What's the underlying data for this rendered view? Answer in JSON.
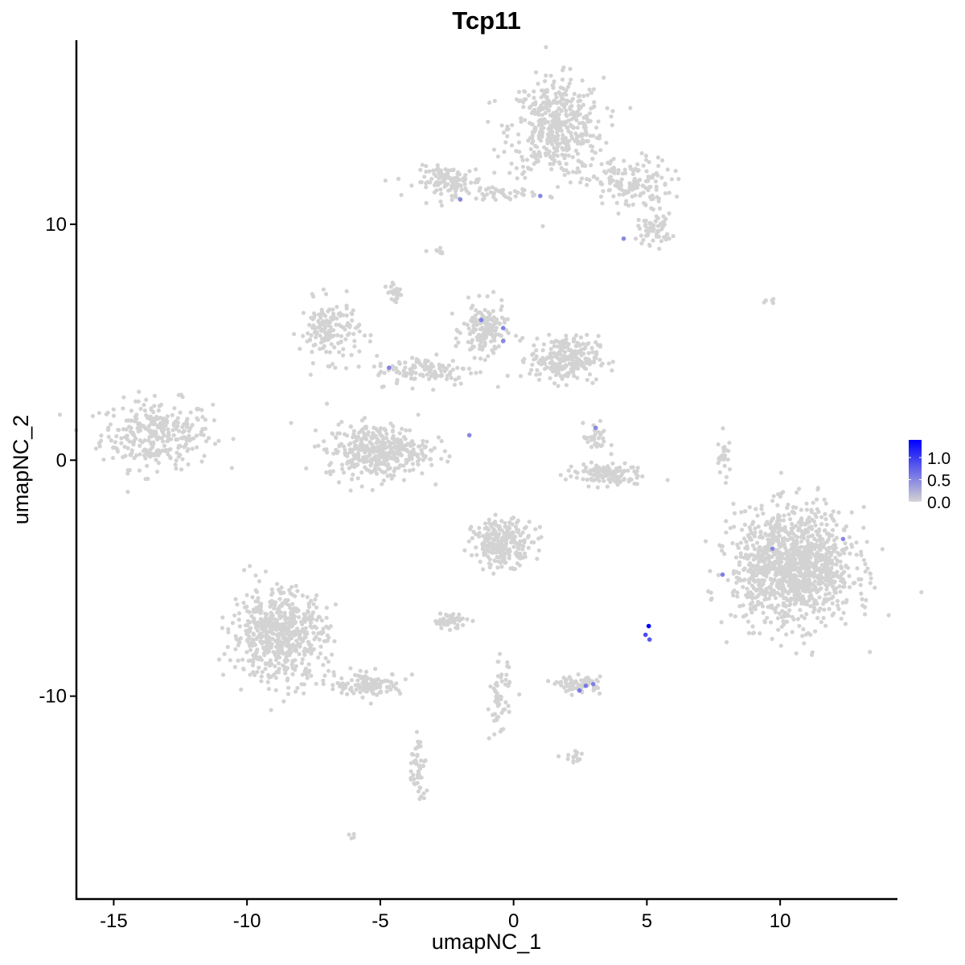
{
  "chart_data": {
    "type": "scatter",
    "title": "Tcp11",
    "xlabel": "umapNC_1",
    "ylabel": "umapNC_2",
    "xlim": [
      -16.4,
      14.4
    ],
    "ylim": [
      -18.6,
      17.8
    ],
    "xticks": [
      -15,
      -10,
      -5,
      0,
      5,
      10
    ],
    "xtick_labels": [
      "-15",
      "-10",
      "-5",
      "0",
      "5",
      "10"
    ],
    "yticks": [
      -10,
      0,
      10
    ],
    "ytick_labels": [
      "-10",
      "0",
      "10"
    ],
    "grid": false,
    "background_color": "#D3D3D3",
    "high_color": "#0000FF",
    "colorbar": {
      "placement": "right",
      "range": [
        0,
        1.4
      ],
      "ticks": [
        0,
        0.5,
        1.0
      ],
      "tick_labels": [
        "0.0",
        "0.5",
        "1.0"
      ]
    },
    "background_clusters": [
      {
        "x": -13.4,
        "y": 1.1,
        "sx": 1.3,
        "sy": 0.9,
        "n": 300
      },
      {
        "x": 1.6,
        "y": 14.1,
        "sx": 1.1,
        "sy": 1.3,
        "n": 450
      },
      {
        "x": 4.3,
        "y": 11.7,
        "sx": 1.0,
        "sy": 0.7,
        "n": 150
      },
      {
        "x": 5.3,
        "y": 9.8,
        "sx": 0.4,
        "sy": 0.4,
        "n": 60
      },
      {
        "x": -2.4,
        "y": 11.8,
        "sx": 0.8,
        "sy": 0.4,
        "n": 120
      },
      {
        "x": -0.5,
        "y": 11.3,
        "sx": 0.9,
        "sy": 0.15,
        "n": 40
      },
      {
        "x": -6.9,
        "y": 5.5,
        "sx": 0.7,
        "sy": 0.8,
        "n": 150
      },
      {
        "x": -1.1,
        "y": 5.5,
        "sx": 0.5,
        "sy": 0.7,
        "n": 150
      },
      {
        "x": 1.9,
        "y": 4.3,
        "sx": 0.8,
        "sy": 0.6,
        "n": 250
      },
      {
        "x": -3.3,
        "y": 3.8,
        "sx": 1.2,
        "sy": 0.4,
        "n": 120
      },
      {
        "x": -5.1,
        "y": 0.4,
        "sx": 1.2,
        "sy": 0.7,
        "n": 400
      },
      {
        "x": 3.4,
        "y": -0.6,
        "sx": 0.9,
        "sy": 0.3,
        "n": 120
      },
      {
        "x": 3.1,
        "y": 0.9,
        "sx": 0.3,
        "sy": 0.4,
        "n": 30
      },
      {
        "x": 10.5,
        "y": -4.5,
        "sx": 1.4,
        "sy": 1.5,
        "n": 1200
      },
      {
        "x": -0.4,
        "y": -3.5,
        "sx": 0.7,
        "sy": 0.6,
        "n": 250
      },
      {
        "x": -8.8,
        "y": -7.4,
        "sx": 1.1,
        "sy": 1.2,
        "n": 600
      },
      {
        "x": -5.4,
        "y": -9.5,
        "sx": 0.8,
        "sy": 0.3,
        "n": 120
      },
      {
        "x": -3.6,
        "y": -13.2,
        "sx": 0.2,
        "sy": 1.0,
        "n": 50
      },
      {
        "x": 2.5,
        "y": -9.5,
        "sx": 0.5,
        "sy": 0.2,
        "n": 70
      },
      {
        "x": -2.4,
        "y": -6.8,
        "sx": 0.4,
        "sy": 0.2,
        "n": 50
      },
      {
        "x": -0.5,
        "y": -10.2,
        "sx": 0.25,
        "sy": 1.0,
        "n": 60
      },
      {
        "x": -4.5,
        "y": 7.2,
        "sx": 0.15,
        "sy": 0.3,
        "n": 20
      },
      {
        "x": 7.9,
        "y": 0.0,
        "sx": 0.2,
        "sy": 0.6,
        "n": 25
      },
      {
        "x": 2.3,
        "y": -12.6,
        "sx": 0.3,
        "sy": 0.15,
        "n": 15
      },
      {
        "x": -2.8,
        "y": 8.8,
        "sx": 0.2,
        "sy": 0.1,
        "n": 10
      },
      {
        "x": 9.6,
        "y": 6.7,
        "sx": 0.15,
        "sy": 0.05,
        "n": 5
      },
      {
        "x": -6.0,
        "y": -16.0,
        "sx": 0.1,
        "sy": 0.1,
        "n": 4
      }
    ],
    "expressing_points": [
      {
        "x": -2.0,
        "y": 11.05,
        "value": 0.5
      },
      {
        "x": 1.0,
        "y": 11.2,
        "value": 0.5
      },
      {
        "x": 4.13,
        "y": 9.39,
        "value": 0.5
      },
      {
        "x": -1.21,
        "y": 5.94,
        "value": 0.55
      },
      {
        "x": -0.39,
        "y": 5.6,
        "value": 0.55
      },
      {
        "x": -0.39,
        "y": 5.05,
        "value": 0.5
      },
      {
        "x": -4.67,
        "y": 3.92,
        "value": 0.55
      },
      {
        "x": -1.66,
        "y": 1.06,
        "value": 0.5
      },
      {
        "x": 3.08,
        "y": 1.37,
        "value": 0.5
      },
      {
        "x": 9.71,
        "y": -3.75,
        "value": 0.5
      },
      {
        "x": 12.36,
        "y": -3.34,
        "value": 0.5
      },
      {
        "x": 7.84,
        "y": -4.85,
        "value": 0.55
      },
      {
        "x": 4.95,
        "y": -7.4,
        "value": 0.9
      },
      {
        "x": 5.1,
        "y": -7.6,
        "value": 0.8
      },
      {
        "x": 5.07,
        "y": -7.03,
        "value": 1.4
      },
      {
        "x": 2.47,
        "y": -9.76,
        "value": 0.6
      },
      {
        "x": 2.71,
        "y": -9.56,
        "value": 0.6
      },
      {
        "x": 2.99,
        "y": -9.49,
        "value": 0.55
      }
    ]
  }
}
